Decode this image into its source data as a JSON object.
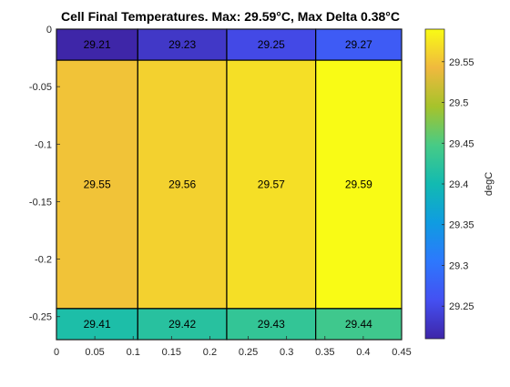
{
  "chart_data": {
    "type": "heatmap",
    "title": "Cell Final Temperatures. Max: 29.59°C, Max Delta 0.38°C",
    "colorbar_label": "degC",
    "xlim": [
      0,
      0.45
    ],
    "ylim": [
      -0.27,
      0
    ],
    "x_ticks": [
      0,
      0.05,
      0.1,
      0.15,
      0.2,
      0.25,
      0.3,
      0.35,
      0.4,
      0.45
    ],
    "x_tick_labels": [
      "0",
      "0.05",
      "0.1",
      "0.15",
      "0.2",
      "0.25",
      "0.3",
      "0.35",
      "0.4",
      "0.45"
    ],
    "y_ticks": [
      0,
      -0.05,
      -0.1,
      -0.15,
      -0.2,
      -0.25
    ],
    "y_tick_labels": [
      "0",
      "-0.05",
      "-0.1",
      "-0.15",
      "-0.2",
      "-0.25"
    ],
    "color_range": [
      29.21,
      29.59
    ],
    "colorbar_ticks": [
      29.25,
      29.3,
      29.35,
      29.4,
      29.45,
      29.5,
      29.55
    ],
    "colorbar_tick_labels": [
      "29.25",
      "29.3",
      "29.35",
      "29.4",
      "29.45",
      "29.5",
      "29.55"
    ],
    "cells": [
      {
        "x0": 0.0,
        "x1": 0.106,
        "y0": -0.027,
        "y1": 0.0,
        "value": 29.21,
        "label": "29.21"
      },
      {
        "x0": 0.106,
        "x1": 0.222,
        "y0": -0.027,
        "y1": 0.0,
        "value": 29.23,
        "label": "29.23"
      },
      {
        "x0": 0.222,
        "x1": 0.338,
        "y0": -0.027,
        "y1": 0.0,
        "value": 29.25,
        "label": "29.25"
      },
      {
        "x0": 0.338,
        "x1": 0.45,
        "y0": -0.027,
        "y1": 0.0,
        "value": 29.27,
        "label": "29.27"
      },
      {
        "x0": 0.0,
        "x1": 0.106,
        "y0": -0.243,
        "y1": -0.027,
        "value": 29.55,
        "label": "29.55"
      },
      {
        "x0": 0.106,
        "x1": 0.222,
        "y0": -0.243,
        "y1": -0.027,
        "value": 29.56,
        "label": "29.56"
      },
      {
        "x0": 0.222,
        "x1": 0.338,
        "y0": -0.243,
        "y1": -0.027,
        "value": 29.57,
        "label": "29.57"
      },
      {
        "x0": 0.338,
        "x1": 0.45,
        "y0": -0.243,
        "y1": -0.027,
        "value": 29.59,
        "label": "29.59"
      },
      {
        "x0": 0.0,
        "x1": 0.106,
        "y0": -0.27,
        "y1": -0.243,
        "value": 29.41,
        "label": "29.41"
      },
      {
        "x0": 0.106,
        "x1": 0.222,
        "y0": -0.27,
        "y1": -0.243,
        "value": 29.42,
        "label": "29.42"
      },
      {
        "x0": 0.222,
        "x1": 0.338,
        "y0": -0.27,
        "y1": -0.243,
        "value": 29.43,
        "label": "29.43"
      },
      {
        "x0": 0.338,
        "x1": 0.45,
        "y0": -0.27,
        "y1": -0.243,
        "value": 29.44,
        "label": "29.44"
      }
    ]
  }
}
